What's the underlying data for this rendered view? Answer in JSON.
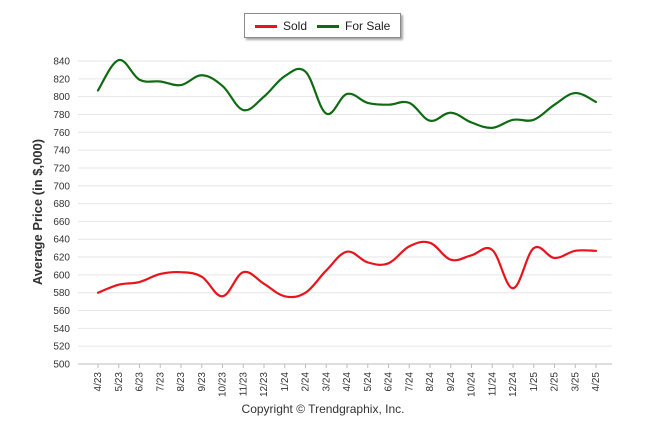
{
  "chart_data": {
    "type": "line",
    "ylabel": "Average Price (in $,000)",
    "ylim": [
      500,
      840
    ],
    "ytick_step": 20,
    "grid": true,
    "legend_placement": "top-center",
    "categories": [
      "4/23",
      "5/23",
      "6/23",
      "7/23",
      "8/23",
      "9/23",
      "10/23",
      "11/23",
      "12/23",
      "1/24",
      "2/24",
      "3/24",
      "4/24",
      "5/24",
      "6/24",
      "7/24",
      "8/24",
      "9/24",
      "10/24",
      "11/24",
      "12/24",
      "1/25",
      "2/25",
      "3/25",
      "4/25"
    ],
    "series": [
      {
        "name": "Sold",
        "color": "#e8131b",
        "values": [
          580,
          589,
          592,
          601,
          603,
          598,
          576,
          603,
          590,
          576,
          580,
          605,
          626,
          614,
          613,
          632,
          636,
          617,
          622,
          628,
          585,
          630,
          619,
          627,
          627
        ]
      },
      {
        "name": "For Sale",
        "color": "#0f6b12",
        "values": [
          807,
          841,
          819,
          817,
          813,
          824,
          812,
          785,
          800,
          823,
          828,
          781,
          803,
          793,
          791,
          793,
          773,
          782,
          771,
          765,
          774,
          774,
          791,
          804,
          794
        ]
      }
    ]
  },
  "copyright": "Copyright © Trendgraphix, Inc."
}
